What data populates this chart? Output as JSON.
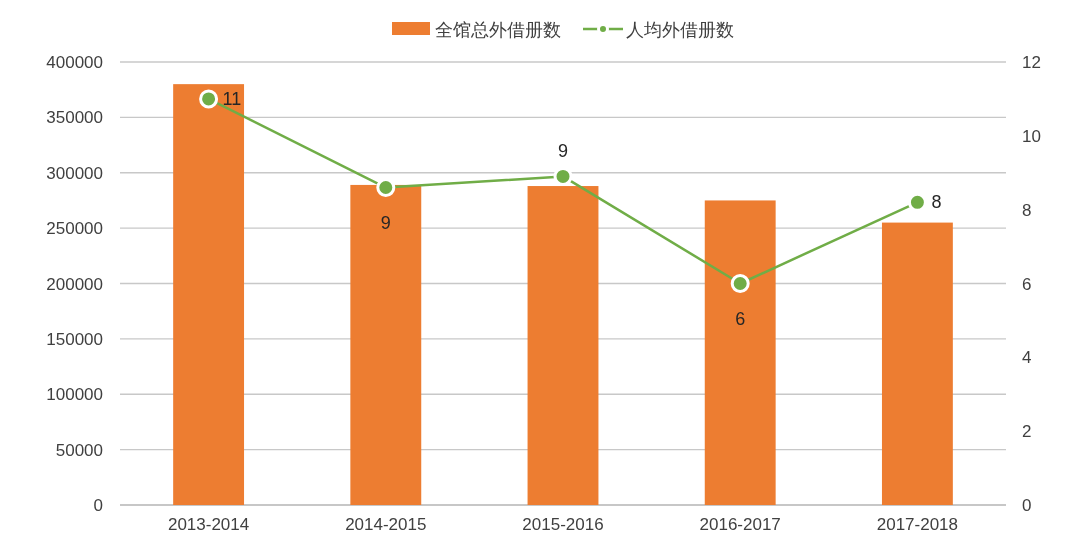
{
  "chart_data": {
    "type": "bar",
    "categories": [
      "2013-2014",
      "2014-2015",
      "2015-2016",
      "2016-2017",
      "2017-2018"
    ],
    "series": [
      {
        "name": "全馆总外借册数",
        "color": "#ed7d31",
        "values": [
          380000,
          289000,
          288000,
          275000,
          255000
        ]
      },
      {
        "name": "人均外借册数",
        "type": "line",
        "axis": "y2",
        "color": "#70ad47",
        "values": [
          11,
          8.6,
          8.9,
          6.0,
          8.2
        ],
        "value_labels": [
          "11",
          "9",
          "9",
          "6",
          "8"
        ]
      }
    ],
    "ylim": [
      0,
      400000
    ],
    "yticks": [
      0,
      50000,
      100000,
      150000,
      200000,
      250000,
      300000,
      350000,
      400000
    ],
    "y2lim": [
      0,
      12
    ],
    "y2ticks": [
      0,
      2,
      4,
      6,
      8,
      10,
      12
    ],
    "grid": "y",
    "legend": "top",
    "marker": "circle",
    "line_style": "solid"
  }
}
